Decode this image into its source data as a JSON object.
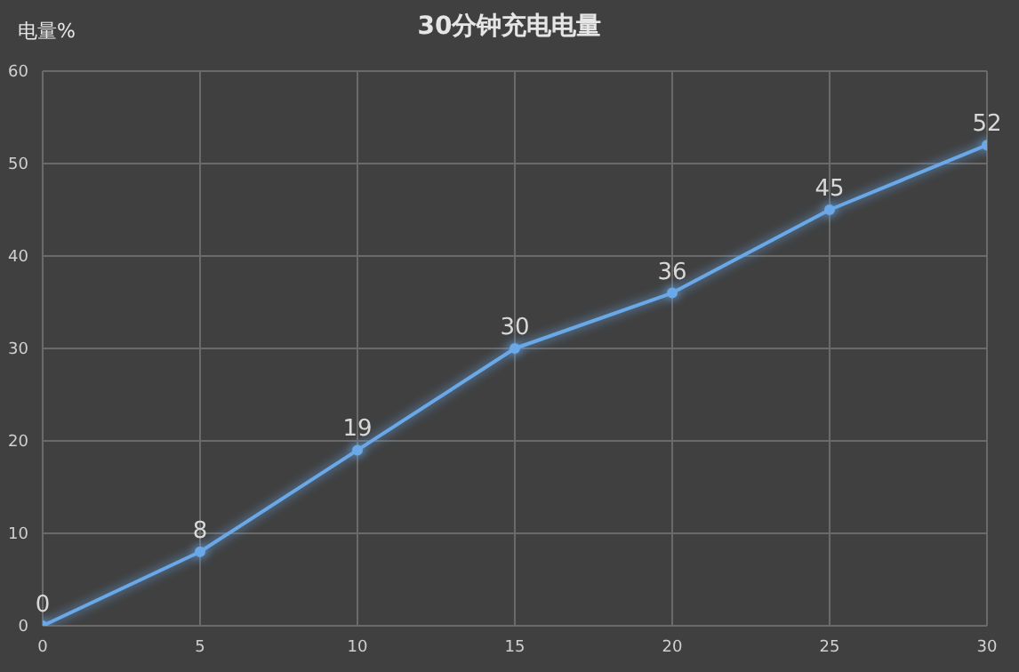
{
  "chart_data": {
    "type": "line",
    "title": "30分钟充电电量",
    "ylabel": "电量%",
    "x": [
      0,
      5,
      10,
      15,
      20,
      25,
      30
    ],
    "series": [
      {
        "color": "#6aa8e8",
        "values": [
          0,
          8,
          19,
          30,
          36,
          45,
          52
        ]
      }
    ],
    "xlim": [
      0,
      30
    ],
    "xticks": [
      0,
      5,
      10,
      15,
      20,
      25,
      30
    ],
    "ylim": [
      0,
      60
    ],
    "yticks": [
      0,
      10,
      20,
      30,
      40,
      50,
      60
    ],
    "grid": true,
    "marker": "circle",
    "line_style": "solid",
    "data_labels": true
  }
}
